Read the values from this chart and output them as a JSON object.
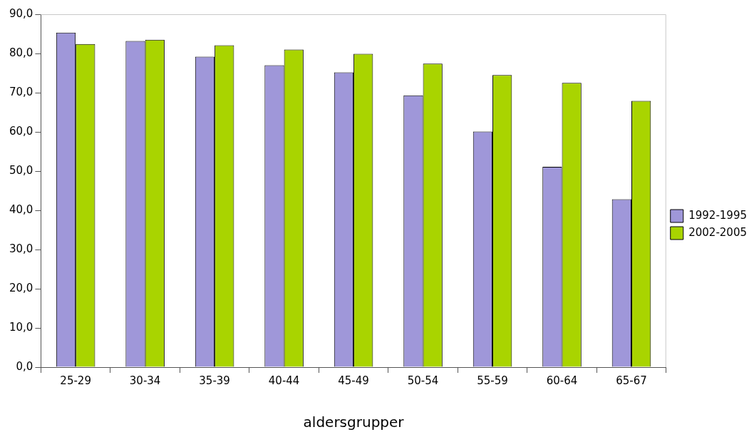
{
  "chart_data": {
    "type": "bar",
    "xlabel": "aldersgrupper",
    "categories": [
      "25-29",
      "30-34",
      "35-39",
      "40-44",
      "45-49",
      "50-54",
      "55-59",
      "60-64",
      "65-67"
    ],
    "series": [
      {
        "name": "1992-1995",
        "color": "#9f97d9",
        "values": [
          85.3,
          83.2,
          79.2,
          77.0,
          75.2,
          69.3,
          60.1,
          51.1,
          42.8
        ]
      },
      {
        "name": "2002-2005",
        "color": "#a9d400",
        "values": [
          82.4,
          83.5,
          82.1,
          81.0,
          79.9,
          77.4,
          74.5,
          72.5,
          67.9
        ]
      }
    ],
    "ylim": [
      0,
      90
    ],
    "yticks": [
      {
        "value": 0,
        "label": "0,0"
      },
      {
        "value": 10,
        "label": "10,0"
      },
      {
        "value": 20,
        "label": "20,0"
      },
      {
        "value": 30,
        "label": "30,0"
      },
      {
        "value": 40,
        "label": "40,0"
      },
      {
        "value": 50,
        "label": "50,0"
      },
      {
        "value": 60,
        "label": "60,0"
      },
      {
        "value": 70,
        "label": "70,0"
      },
      {
        "value": 80,
        "label": "80,0"
      },
      {
        "value": 90,
        "label": "90,0"
      }
    ],
    "grid": false,
    "legend": "right"
  }
}
